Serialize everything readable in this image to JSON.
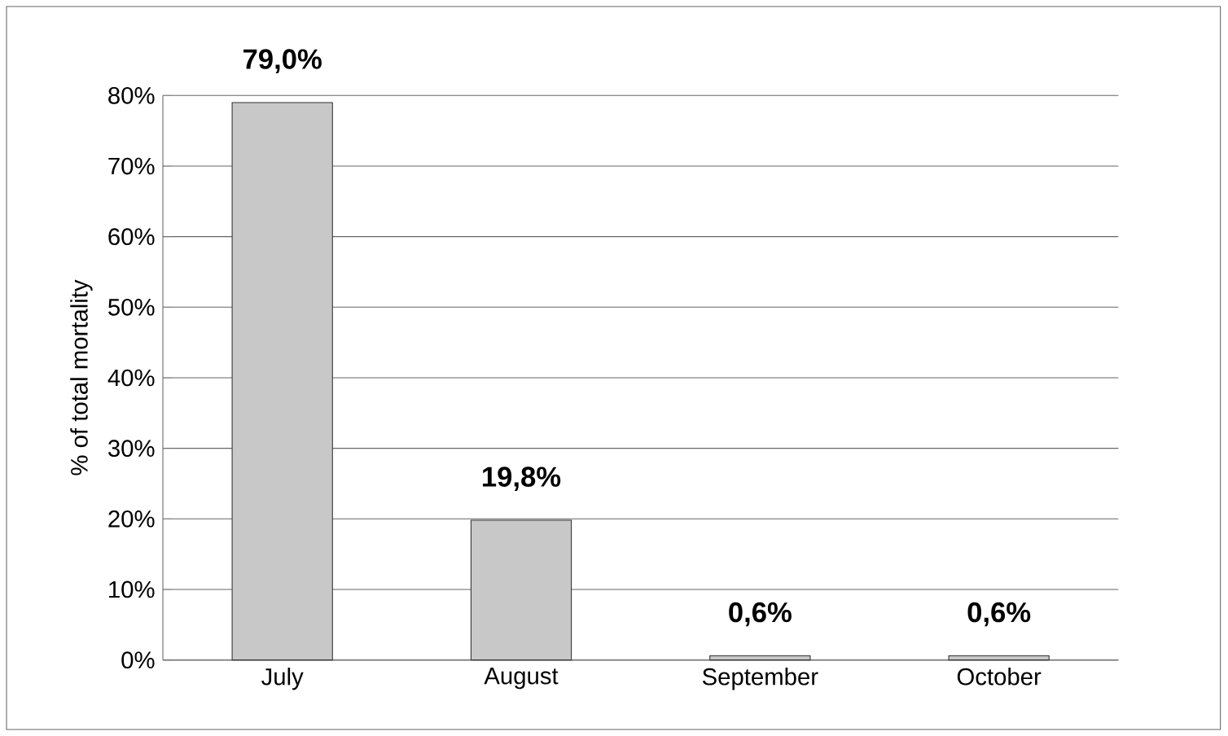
{
  "chart_data": {
    "type": "bar",
    "ylabel": "% of total mortality",
    "categories": [
      "July",
      "August",
      "September",
      "October"
    ],
    "values": [
      79.0,
      19.8,
      0.6,
      0.6
    ],
    "value_labels": [
      "79,0%",
      "19,8%",
      "0,6%",
      "0,6%"
    ],
    "color": "#c8c8c8",
    "ylim": [
      0,
      80
    ],
    "yticks": [
      {
        "value": 0,
        "label": "0%"
      },
      {
        "value": 10,
        "label": "10%"
      },
      {
        "value": 20,
        "label": "20%"
      },
      {
        "value": 30,
        "label": "30%"
      },
      {
        "value": 40,
        "label": "40%"
      },
      {
        "value": 50,
        "label": "50%"
      },
      {
        "value": 60,
        "label": "60%"
      },
      {
        "value": 70,
        "label": "70%"
      },
      {
        "value": 80,
        "label": "80%"
      }
    ],
    "grid": "y"
  }
}
